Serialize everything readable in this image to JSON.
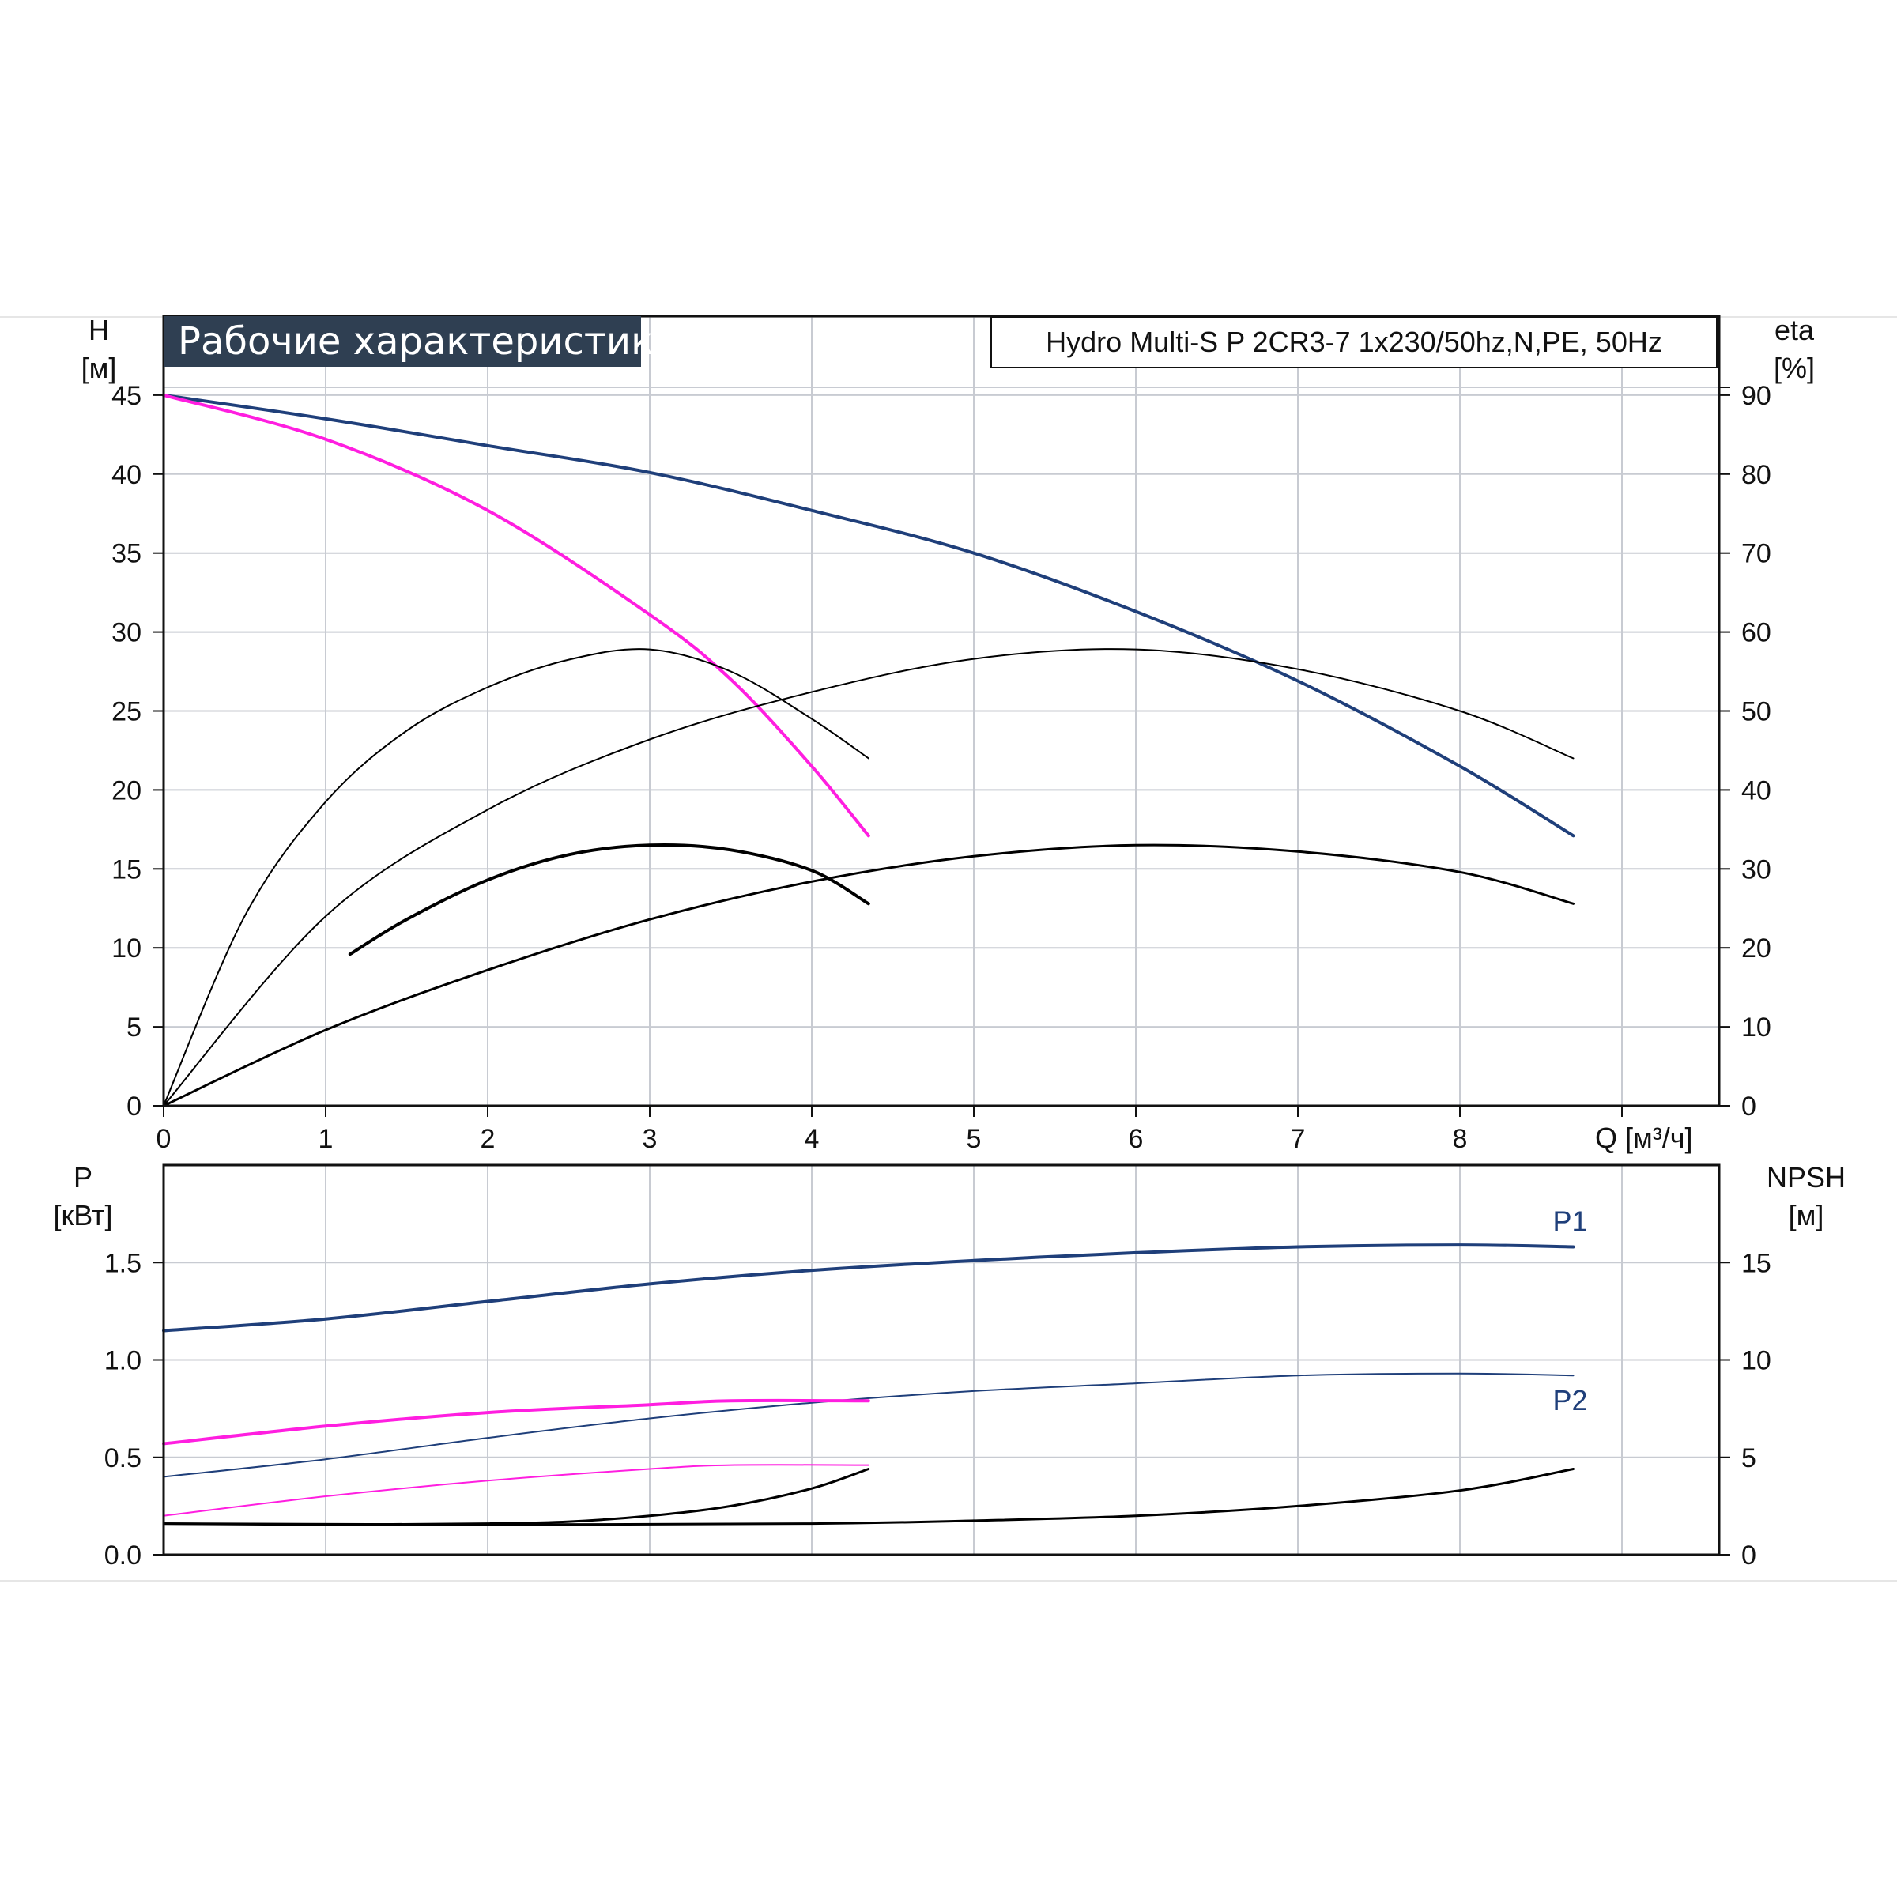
{
  "title": "Рабочие характеристики",
  "model": "Hydro Multi-S P 2CR3-7 1x230/50hz,N,PE, 50Hz",
  "axes": {
    "head": {
      "name": "H",
      "unit": "[м]"
    },
    "efficiency": {
      "name": "eta",
      "unit": "[%]"
    },
    "power": {
      "name": "P",
      "unit": "[кВт]"
    },
    "npsh": {
      "name": "NPSH",
      "unit": "[м]"
    },
    "flow": {
      "label": "Q [м³/ч]"
    }
  },
  "chart_data": [
    {
      "type": "line",
      "title": "",
      "x_range": [
        0,
        9.6
      ],
      "x_ticks": [
        0,
        1,
        2,
        3,
        4,
        5,
        6,
        7,
        8
      ],
      "y_left": {
        "label": "H [м]",
        "range": [
          0,
          50
        ],
        "ticks": [
          0,
          5,
          10,
          15,
          20,
          25,
          30,
          35,
          40,
          45
        ]
      },
      "y_right": {
        "label": "eta [%]",
        "range": [
          0,
          100
        ],
        "ticks": [
          0,
          10,
          20,
          30,
          40,
          50,
          60,
          70,
          80,
          90
        ]
      },
      "grid": true,
      "series": [
        {
          "axis": "left",
          "color": "#1f3f7a",
          "width": 4,
          "points": [
            [
              0,
              45
            ],
            [
              1,
              43.5
            ],
            [
              2,
              41.8
            ],
            [
              3,
              40.1
            ],
            [
              4,
              37.7
            ],
            [
              5,
              35
            ],
            [
              6,
              31.3
            ],
            [
              7,
              26.9
            ],
            [
              8,
              21.5
            ],
            [
              8.7,
              17.1
            ]
          ]
        },
        {
          "axis": "left",
          "color": "#ff1ee0",
          "width": 4,
          "points": [
            [
              0,
              45
            ],
            [
              1,
              42.2
            ],
            [
              2,
              37.7
            ],
            [
              3,
              31.1
            ],
            [
              3.5,
              27
            ],
            [
              4,
              21.5
            ],
            [
              4.35,
              17.1
            ]
          ]
        },
        {
          "axis": "right",
          "color": "#000000",
          "width": 2,
          "points": [
            [
              0,
              0
            ],
            [
              0.5,
              24
            ],
            [
              1,
              38.5
            ],
            [
              1.5,
              47.5
            ],
            [
              2,
              53
            ],
            [
              2.5,
              56.5
            ],
            [
              3,
              57.8
            ],
            [
              3.5,
              55
            ],
            [
              4,
              49
            ],
            [
              4.35,
              44
            ]
          ]
        },
        {
          "axis": "right",
          "color": "#000000",
          "width": 2,
          "points": [
            [
              0,
              0
            ],
            [
              1,
              24
            ],
            [
              2,
              37.5
            ],
            [
              3,
              46.4
            ],
            [
              4,
              52.4
            ],
            [
              5,
              56.6
            ],
            [
              6,
              57.8
            ],
            [
              7,
              55.3
            ],
            [
              8,
              50
            ],
            [
              8.7,
              44
            ]
          ]
        },
        {
          "axis": "left",
          "color": "#000000",
          "width": 4,
          "points": [
            [
              1.15,
              9.6
            ],
            [
              1.5,
              11.8
            ],
            [
              2,
              14.3
            ],
            [
              2.5,
              15.9
            ],
            [
              3,
              16.5
            ],
            [
              3.5,
              16.2
            ],
            [
              4,
              14.9
            ],
            [
              4.35,
              12.8
            ]
          ]
        },
        {
          "axis": "left",
          "color": "#000000",
          "width": 3,
          "points": [
            [
              0,
              0
            ],
            [
              1,
              4.8
            ],
            [
              2,
              8.6
            ],
            [
              3,
              11.8
            ],
            [
              4,
              14.2
            ],
            [
              5,
              15.8
            ],
            [
              6,
              16.5
            ],
            [
              7,
              16.1
            ],
            [
              8,
              14.8
            ],
            [
              8.7,
              12.8
            ]
          ]
        }
      ]
    },
    {
      "type": "line",
      "title": "",
      "x_range": [
        0,
        9.6
      ],
      "x_ticks": [
        0,
        1,
        2,
        3,
        4,
        5,
        6,
        7,
        8
      ],
      "y_left": {
        "label": "P [кВт]",
        "range": [
          0,
          2.0
        ],
        "ticks": [
          0.0,
          0.5,
          1.0,
          1.5
        ],
        "tick_labels": [
          "0.0",
          "0.5",
          "1.0",
          "1.5"
        ]
      },
      "y_right": {
        "label": "NPSH [м]",
        "range": [
          0,
          20
        ],
        "ticks": [
          0,
          5,
          10,
          15
        ]
      },
      "grid": true,
      "series": [
        {
          "name": "P1",
          "axis": "left",
          "color": "#1f3f7a",
          "width": 4,
          "points": [
            [
              0,
              1.15
            ],
            [
              1,
              1.21
            ],
            [
              2,
              1.3
            ],
            [
              3,
              1.39
            ],
            [
              4,
              1.46
            ],
            [
              5,
              1.51
            ],
            [
              6,
              1.55
            ],
            [
              7,
              1.58
            ],
            [
              8,
              1.59
            ],
            [
              8.7,
              1.58
            ]
          ]
        },
        {
          "name": "P2",
          "axis": "left",
          "color": "#1f3f7a",
          "width": 2,
          "points": [
            [
              0,
              0.4
            ],
            [
              1,
              0.49
            ],
            [
              2,
              0.6
            ],
            [
              3,
              0.7
            ],
            [
              4,
              0.78
            ],
            [
              5,
              0.84
            ],
            [
              6,
              0.88
            ],
            [
              7,
              0.92
            ],
            [
              8,
              0.93
            ],
            [
              8.7,
              0.92
            ]
          ]
        },
        {
          "axis": "left",
          "color": "#ff1ee0",
          "width": 4,
          "points": [
            [
              0,
              0.57
            ],
            [
              1,
              0.66
            ],
            [
              2,
              0.73
            ],
            [
              3,
              0.77
            ],
            [
              3.5,
              0.79
            ],
            [
              4.35,
              0.79
            ]
          ]
        },
        {
          "axis": "left",
          "color": "#ff1ee0",
          "width": 2,
          "points": [
            [
              0,
              0.2
            ],
            [
              1,
              0.3
            ],
            [
              2,
              0.38
            ],
            [
              3,
              0.44
            ],
            [
              3.5,
              0.46
            ],
            [
              4.35,
              0.46
            ]
          ]
        },
        {
          "axis": "right",
          "color": "#000000",
          "width": 3,
          "points": [
            [
              0,
              1.6
            ],
            [
              1,
              1.55
            ],
            [
              2,
              1.6
            ],
            [
              2.5,
              1.7
            ],
            [
              3,
              2.0
            ],
            [
              3.5,
              2.5
            ],
            [
              4,
              3.4
            ],
            [
              4.35,
              4.4
            ]
          ]
        },
        {
          "axis": "right",
          "color": "#000000",
          "width": 3,
          "points": [
            [
              0,
              1.6
            ],
            [
              2,
              1.55
            ],
            [
              4,
              1.6
            ],
            [
              5,
              1.75
            ],
            [
              6,
              2.0
            ],
            [
              7,
              2.5
            ],
            [
              8,
              3.3
            ],
            [
              8.7,
              4.4
            ]
          ]
        }
      ]
    }
  ]
}
